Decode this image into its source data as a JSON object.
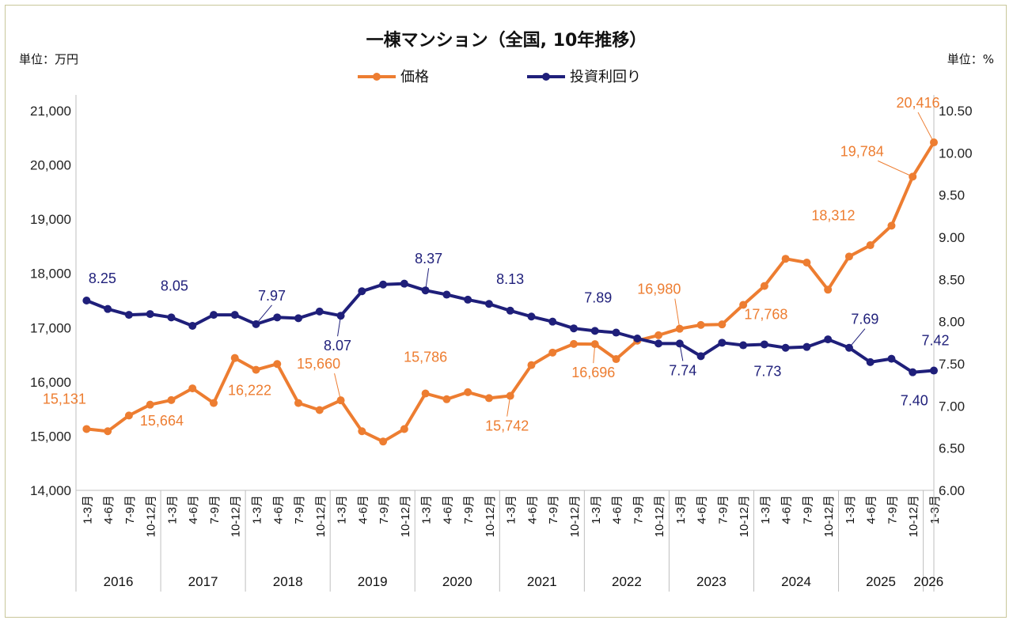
{
  "chart_data": {
    "type": "line",
    "title": "一棟マンション（全国, 10年推移）",
    "left_unit": "単位：万円",
    "right_unit": "単位：%",
    "x": [
      "1-3月",
      "4-6月",
      "7-9月",
      "10-12月",
      "1-3月",
      "4-6月",
      "7-9月",
      "10-12月",
      "1-3月",
      "4-6月",
      "7-9月",
      "10-12月",
      "1-3月",
      "4-6月",
      "7-9月",
      "10-12月",
      "1-3月",
      "4-6月",
      "7-9月",
      "10-12月",
      "1-3月",
      "4-6月",
      "7-9月",
      "10-12月",
      "1-3月",
      "4-6月",
      "7-9月",
      "10-12月",
      "1-3月",
      "4-6月",
      "7-9月",
      "10-12月",
      "1-3月",
      "4-6月",
      "7-9月",
      "10-12月",
      "1-3月",
      "4-6月",
      "7-9月",
      "10-12月",
      "1-3月"
    ],
    "years": [
      {
        "label": "2016",
        "start": 0,
        "end": 3
      },
      {
        "label": "2017",
        "start": 4,
        "end": 7
      },
      {
        "label": "2018",
        "start": 8,
        "end": 11
      },
      {
        "label": "2019",
        "start": 12,
        "end": 15
      },
      {
        "label": "2020",
        "start": 16,
        "end": 19
      },
      {
        "label": "2021",
        "start": 20,
        "end": 23
      },
      {
        "label": "2022",
        "start": 24,
        "end": 27
      },
      {
        "label": "2023",
        "start": 28,
        "end": 31
      },
      {
        "label": "2024",
        "start": 32,
        "end": 35
      },
      {
        "label": "2025",
        "start": 36,
        "end": 39
      },
      {
        "label": "2026",
        "start": 40,
        "end": 40
      }
    ],
    "left_axis": {
      "ylim": [
        14000,
        21000
      ],
      "ticks": [
        14000,
        15000,
        16000,
        17000,
        18000,
        19000,
        20000,
        21000
      ],
      "tick_labels": [
        "14,000",
        "15,000",
        "16,000",
        "17,000",
        "18,000",
        "19,000",
        "20,000",
        "21,000"
      ]
    },
    "right_axis": {
      "ylim": [
        6.0,
        10.5
      ],
      "ticks": [
        6.0,
        6.5,
        7.0,
        7.5,
        8.0,
        8.5,
        9.0,
        9.5,
        10.0,
        10.5
      ],
      "tick_labels": [
        "6.00",
        "6.50",
        "7.00",
        "7.50",
        "8.00",
        "8.50",
        "9.00",
        "9.50",
        "10.00",
        "10.50"
      ]
    },
    "series": [
      {
        "name": "価格",
        "axis": "left",
        "color": "#ed7d31",
        "values": [
          15131,
          15090,
          15380,
          15580,
          15664,
          15880,
          15610,
          16440,
          16222,
          16330,
          15610,
          15480,
          15660,
          15090,
          14900,
          15130,
          15786,
          15680,
          15810,
          15700,
          15742,
          16310,
          16540,
          16700,
          16696,
          16420,
          16760,
          16860,
          16980,
          17050,
          17060,
          17420,
          17768,
          18270,
          18200,
          17700,
          18312,
          18520,
          18880,
          19784,
          20416
        ],
        "labels": [
          {
            "i": 0,
            "text": "15,131"
          },
          {
            "i": 4,
            "text": "15,664"
          },
          {
            "i": 8,
            "text": "16,222"
          },
          {
            "i": 12,
            "text": "15,660"
          },
          {
            "i": 16,
            "text": "15,786"
          },
          {
            "i": 20,
            "text": "15,742"
          },
          {
            "i": 24,
            "text": "16,696"
          },
          {
            "i": 28,
            "text": "16,980"
          },
          {
            "i": 32,
            "text": "17,768"
          },
          {
            "i": 36,
            "text": "18,312"
          },
          {
            "i": 39,
            "text": "19,784"
          },
          {
            "i": 40,
            "text": "20,416"
          }
        ]
      },
      {
        "name": "投資利回り",
        "axis": "right",
        "color": "#1f1f7a",
        "values": [
          8.25,
          8.15,
          8.08,
          8.09,
          8.05,
          7.95,
          8.08,
          8.08,
          7.97,
          8.05,
          8.04,
          8.12,
          8.07,
          8.36,
          8.44,
          8.45,
          8.37,
          8.32,
          8.26,
          8.21,
          8.13,
          8.06,
          8.0,
          7.92,
          7.89,
          7.87,
          7.8,
          7.74,
          7.74,
          7.59,
          7.75,
          7.72,
          7.73,
          7.69,
          7.7,
          7.79,
          7.69,
          7.52,
          7.56,
          7.4,
          7.42
        ],
        "labels": [
          {
            "i": 0,
            "text": "8.25"
          },
          {
            "i": 4,
            "text": "8.05"
          },
          {
            "i": 8,
            "text": "7.97"
          },
          {
            "i": 12,
            "text": "8.07"
          },
          {
            "i": 16,
            "text": "8.37"
          },
          {
            "i": 20,
            "text": "8.13"
          },
          {
            "i": 24,
            "text": "7.89"
          },
          {
            "i": 28,
            "text": "7.74"
          },
          {
            "i": 32,
            "text": "7.73"
          },
          {
            "i": 36,
            "text": "7.69"
          },
          {
            "i": 39,
            "text": "7.40"
          },
          {
            "i": 40,
            "text": "7.42"
          }
        ]
      }
    ],
    "legend": "top-center",
    "grid": false
  }
}
